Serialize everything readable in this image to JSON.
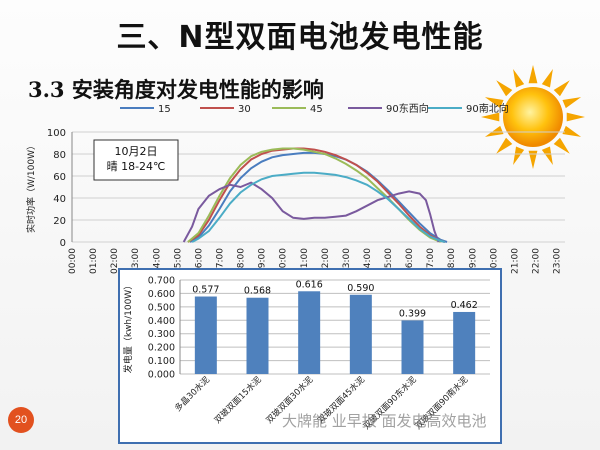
{
  "slide": {
    "title": "三、N型双面电池发电性能",
    "subtitle": "3.3 安装角度对发电性能的影响",
    "page_number": "20",
    "watermark": "大牌能 业早报 面发电高效电池"
  },
  "chart_data": [
    {
      "type": "line",
      "title": "",
      "ylabel": "实时功率（W/100W）",
      "xlabel": "",
      "ylim": [
        0,
        100
      ],
      "yticks": [
        0,
        20,
        40,
        60,
        80,
        100
      ],
      "annotation": [
        "10月2日",
        "晴 18-24℃"
      ],
      "legend_position": "top",
      "grid": true,
      "categories": [
        "00:00",
        "01:00",
        "02:00",
        "03:00",
        "04:00",
        "05:00",
        "06:00",
        "07:00",
        "08:00",
        "09:00",
        "10:00",
        "11:00",
        "12:00",
        "13:00",
        "14:00",
        "15:00",
        "16:00",
        "17:00",
        "18:00",
        "19:00",
        "20:00",
        "21:00",
        "22:00",
        "23:00"
      ],
      "series": [
        {
          "name": "15",
          "color": "#4a7dbf",
          "points": [
            [
              5.6,
              0
            ],
            [
              6,
              4
            ],
            [
              6.5,
              15
            ],
            [
              7,
              30
            ],
            [
              7.5,
              46
            ],
            [
              8,
              58
            ],
            [
              8.5,
              67
            ],
            [
              9,
              73
            ],
            [
              9.5,
              77
            ],
            [
              10,
              79
            ],
            [
              10.5,
              80
            ],
            [
              11,
              81
            ],
            [
              11.5,
              81
            ],
            [
              12,
              80
            ],
            [
              12.5,
              78
            ],
            [
              13,
              75
            ],
            [
              13.5,
              70
            ],
            [
              14,
              64
            ],
            [
              14.5,
              56
            ],
            [
              15,
              47
            ],
            [
              15.5,
              37
            ],
            [
              16,
              27
            ],
            [
              16.5,
              17
            ],
            [
              17,
              8
            ],
            [
              17.5,
              2
            ],
            [
              17.8,
              0
            ]
          ]
        },
        {
          "name": "30",
          "color": "#c0504d",
          "points": [
            [
              5.5,
              0
            ],
            [
              6,
              6
            ],
            [
              6.5,
              20
            ],
            [
              7,
              38
            ],
            [
              7.5,
              54
            ],
            [
              8,
              66
            ],
            [
              8.5,
              75
            ],
            [
              9,
              80
            ],
            [
              9.5,
              83
            ],
            [
              10,
              84
            ],
            [
              10.5,
              85
            ],
            [
              11,
              85
            ],
            [
              11.5,
              84
            ],
            [
              12,
              82
            ],
            [
              12.5,
              79
            ],
            [
              13,
              75
            ],
            [
              13.5,
              70
            ],
            [
              14,
              63
            ],
            [
              14.5,
              55
            ],
            [
              15,
              45
            ],
            [
              15.5,
              35
            ],
            [
              16,
              24
            ],
            [
              16.5,
              14
            ],
            [
              17,
              6
            ],
            [
              17.5,
              1
            ],
            [
              17.7,
              0
            ]
          ]
        },
        {
          "name": "45",
          "color": "#9bbb59",
          "points": [
            [
              5.5,
              0
            ],
            [
              6,
              8
            ],
            [
              6.5,
              24
            ],
            [
              7,
              42
            ],
            [
              7.5,
              58
            ],
            [
              8,
              70
            ],
            [
              8.5,
              78
            ],
            [
              9,
              82
            ],
            [
              9.5,
              84
            ],
            [
              10,
              85
            ],
            [
              10.5,
              85
            ],
            [
              11,
              84
            ],
            [
              11.5,
              82
            ],
            [
              12,
              80
            ],
            [
              12.5,
              76
            ],
            [
              13,
              71
            ],
            [
              13.5,
              65
            ],
            [
              14,
              58
            ],
            [
              14.5,
              49
            ],
            [
              15,
              40
            ],
            [
              15.5,
              30
            ],
            [
              16,
              20
            ],
            [
              16.5,
              11
            ],
            [
              17,
              4
            ],
            [
              17.5,
              0
            ]
          ]
        },
        {
          "name": "90东西向",
          "color": "#7a5a9e",
          "points": [
            [
              5.3,
              0
            ],
            [
              5.7,
              14
            ],
            [
              6,
              30
            ],
            [
              6.5,
              42
            ],
            [
              7,
              48
            ],
            [
              7.5,
              52
            ],
            [
              8,
              50
            ],
            [
              8.5,
              54
            ],
            [
              9,
              48
            ],
            [
              9.5,
              40
            ],
            [
              10,
              28
            ],
            [
              10.5,
              22
            ],
            [
              11,
              21
            ],
            [
              11.5,
              22
            ],
            [
              12,
              22
            ],
            [
              12.5,
              23
            ],
            [
              13,
              24
            ],
            [
              13.5,
              28
            ],
            [
              14,
              33
            ],
            [
              14.5,
              38
            ],
            [
              15,
              41
            ],
            [
              15.5,
              44
            ],
            [
              16,
              46
            ],
            [
              16.5,
              44
            ],
            [
              16.8,
              38
            ],
            [
              17,
              25
            ],
            [
              17.2,
              10
            ],
            [
              17.4,
              0
            ]
          ]
        },
        {
          "name": "90南北向",
          "color": "#4bacc6",
          "points": [
            [
              5.7,
              0
            ],
            [
              6,
              3
            ],
            [
              6.5,
              10
            ],
            [
              7,
              22
            ],
            [
              7.5,
              35
            ],
            [
              8,
              45
            ],
            [
              8.5,
              52
            ],
            [
              9,
              57
            ],
            [
              9.5,
              60
            ],
            [
              10,
              61
            ],
            [
              10.5,
              62
            ],
            [
              11,
              63
            ],
            [
              11.5,
              63
            ],
            [
              12,
              62
            ],
            [
              12.5,
              61
            ],
            [
              13,
              59
            ],
            [
              13.5,
              56
            ],
            [
              14,
              52
            ],
            [
              14.5,
              46
            ],
            [
              15,
              39
            ],
            [
              15.5,
              30
            ],
            [
              16,
              21
            ],
            [
              16.5,
              12
            ],
            [
              17,
              5
            ],
            [
              17.5,
              1
            ],
            [
              17.7,
              0
            ]
          ]
        }
      ]
    },
    {
      "type": "bar",
      "title": "",
      "ylabel": "发电量（kwh/100W）",
      "xlabel": "",
      "ylim": [
        0,
        0.7
      ],
      "yticks": [
        "0.000",
        "0.100",
        "0.200",
        "0.300",
        "0.400",
        "0.500",
        "0.600",
        "0.700"
      ],
      "categories": [
        "多晶30水泥",
        "双玻双面15水泥",
        "双玻双面30水泥",
        "双玻双面45水泥",
        "双玻双面90东水泥",
        "双玻双面90南水泥"
      ],
      "values": [
        0.577,
        0.568,
        0.616,
        0.59,
        0.399,
        0.462
      ],
      "value_labels": [
        "0.577",
        "0.568",
        "0.616",
        "0.590",
        "0.399",
        "0.462"
      ],
      "bar_color": "#4f81bd",
      "grid": true
    }
  ]
}
